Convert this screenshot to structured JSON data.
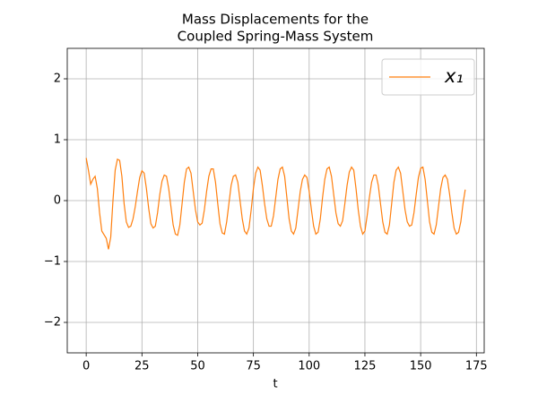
{
  "chart_data": {
    "type": "line",
    "title": [
      "Mass Displacements for the",
      "Coupled Spring-Mass System"
    ],
    "x_label": "t",
    "x": [
      0,
      1,
      2,
      3,
      4,
      5,
      6,
      7,
      8,
      9,
      10,
      11,
      12,
      13,
      14,
      15,
      16,
      17,
      18,
      19,
      20,
      21,
      22,
      23,
      24,
      25,
      26,
      27,
      28,
      29,
      30,
      31,
      32,
      33,
      34,
      35,
      36,
      37,
      38,
      39,
      40,
      41,
      42,
      43,
      44,
      45,
      46,
      47,
      48,
      49,
      50,
      51,
      52,
      53,
      54,
      55,
      56,
      57,
      58,
      59,
      60,
      61,
      62,
      63,
      64,
      65,
      66,
      67,
      68,
      69,
      70,
      71,
      72,
      73,
      74,
      75,
      76,
      77,
      78,
      79,
      80,
      81,
      82,
      83,
      84,
      85,
      86,
      87,
      88,
      89,
      90,
      91,
      92,
      93,
      94,
      95,
      96,
      97,
      98,
      99,
      100,
      101,
      102,
      103,
      104,
      105,
      106,
      107,
      108,
      109,
      110,
      111,
      112,
      113,
      114,
      115,
      116,
      117,
      118,
      119,
      120,
      121,
      122,
      123,
      124,
      125,
      126,
      127,
      128,
      129,
      130,
      131,
      132,
      133,
      134,
      135,
      136,
      137,
      138,
      139,
      140,
      141,
      142,
      143,
      144,
      145,
      146,
      147,
      148,
      149,
      150,
      151,
      152,
      153,
      154,
      155,
      156,
      157,
      158,
      159,
      160,
      161,
      162,
      163,
      164,
      165,
      166,
      167,
      168,
      169,
      170
    ],
    "series": [
      {
        "name": "x₁",
        "color": "#ff7f0e",
        "values": [
          0.7,
          0.5,
          0.27,
          0.35,
          0.4,
          0.2,
          -0.2,
          -0.5,
          -0.56,
          -0.62,
          -0.8,
          -0.6,
          0.0,
          0.5,
          0.68,
          0.66,
          0.4,
          -0.05,
          -0.35,
          -0.44,
          -0.42,
          -0.3,
          -0.1,
          0.15,
          0.38,
          0.49,
          0.45,
          0.2,
          -0.12,
          -0.38,
          -0.45,
          -0.42,
          -0.2,
          0.1,
          0.32,
          0.42,
          0.4,
          0.2,
          -0.1,
          -0.4,
          -0.55,
          -0.57,
          -0.4,
          -0.05,
          0.3,
          0.52,
          0.55,
          0.45,
          0.15,
          -0.15,
          -0.35,
          -0.4,
          -0.37,
          -0.15,
          0.15,
          0.4,
          0.52,
          0.52,
          0.3,
          -0.05,
          -0.38,
          -0.53,
          -0.55,
          -0.35,
          -0.05,
          0.25,
          0.4,
          0.42,
          0.3,
          0.0,
          -0.3,
          -0.5,
          -0.55,
          -0.45,
          -0.15,
          0.2,
          0.45,
          0.55,
          0.5,
          0.25,
          -0.05,
          -0.3,
          -0.42,
          -0.42,
          -0.25,
          0.05,
          0.35,
          0.52,
          0.55,
          0.4,
          0.05,
          -0.3,
          -0.5,
          -0.55,
          -0.45,
          -0.15,
          0.15,
          0.35,
          0.42,
          0.38,
          0.15,
          -0.15,
          -0.42,
          -0.55,
          -0.52,
          -0.3,
          0.05,
          0.35,
          0.52,
          0.55,
          0.4,
          0.1,
          -0.2,
          -0.38,
          -0.42,
          -0.33,
          -0.05,
          0.25,
          0.47,
          0.55,
          0.5,
          0.2,
          -0.15,
          -0.42,
          -0.55,
          -0.5,
          -0.25,
          0.05,
          0.3,
          0.42,
          0.42,
          0.25,
          -0.05,
          -0.35,
          -0.52,
          -0.55,
          -0.4,
          -0.05,
          0.3,
          0.5,
          0.55,
          0.45,
          0.15,
          -0.15,
          -0.35,
          -0.42,
          -0.4,
          -0.2,
          0.1,
          0.38,
          0.53,
          0.55,
          0.35,
          0.0,
          -0.35,
          -0.52,
          -0.55,
          -0.4,
          -0.1,
          0.2,
          0.38,
          0.42,
          0.35,
          0.1,
          -0.2,
          -0.45,
          -0.55,
          -0.52,
          -0.35,
          -0.05,
          0.18
        ]
      }
    ],
    "xlim": [
      -8.5,
      178.5
    ],
    "xticks": [
      0,
      25,
      50,
      75,
      100,
      125,
      150,
      175
    ],
    "ylim": [
      -2.5,
      2.5
    ],
    "yticks": [
      {
        "value": -2,
        "label": "−2"
      },
      {
        "value": -1,
        "label": "−1"
      },
      0,
      1,
      2
    ],
    "grid": true,
    "legend": "upper right"
  }
}
